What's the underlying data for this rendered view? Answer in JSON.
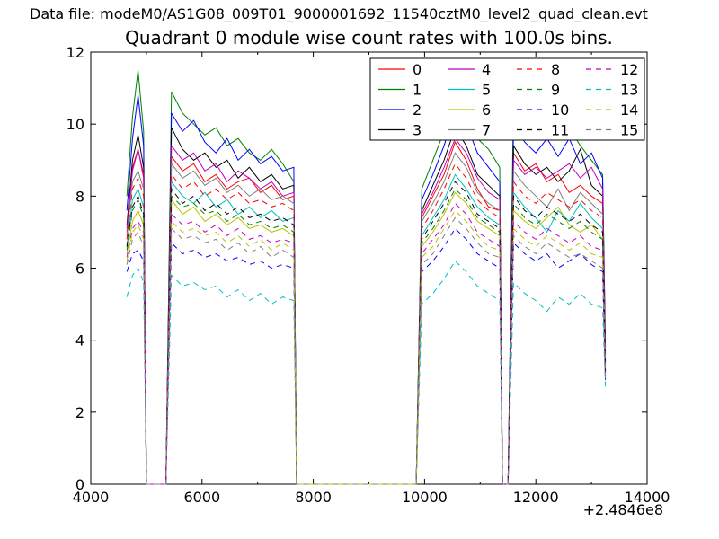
{
  "header_text": "Data file: modeM0/AS1G08_009T01_9000001692_11540cztM0_level2_quad_clean.evt",
  "chart_data": {
    "type": "line",
    "title": "Quadrant 0 module wise count rates with 100.0s bins.",
    "xlabel": "",
    "ylabel": "",
    "x_offset_label": "+2.4846e8",
    "xlim": [
      4000,
      14000
    ],
    "ylim": [
      0,
      12
    ],
    "xticks": [
      4000,
      6000,
      8000,
      10000,
      12000,
      14000
    ],
    "xminorticks": [
      5000,
      7000,
      9000,
      11000,
      13000
    ],
    "yticks": [
      0,
      2,
      4,
      6,
      8,
      10,
      12
    ],
    "grid": false,
    "legend_position": "upper center, 4 columns",
    "x": [
      4650,
      4750,
      4850,
      4950,
      5000,
      5350,
      5450,
      5650,
      5850,
      6050,
      6250,
      6450,
      6650,
      6850,
      7050,
      7250,
      7450,
      7650,
      7700,
      9850,
      9950,
      10150,
      10350,
      10550,
      10750,
      10950,
      11150,
      11350,
      11400,
      11500,
      11600,
      11800,
      12000,
      12200,
      12400,
      12600,
      12800,
      13000,
      13200,
      13250
    ],
    "series": [
      {
        "name": "0",
        "color": "#ff0000",
        "dash": false,
        "values": [
          7.0,
          8.8,
          9.3,
          8.5,
          0,
          0,
          9.1,
          8.7,
          8.9,
          8.4,
          8.6,
          8.2,
          8.4,
          8.5,
          8.1,
          8.3,
          7.9,
          8.0,
          0,
          0,
          7.4,
          8.0,
          8.6,
          9.5,
          9.0,
          8.2,
          7.7,
          7.6,
          0,
          0,
          9.2,
          8.7,
          8.9,
          8.4,
          8.6,
          8.1,
          8.3,
          8.0,
          7.8,
          3.4
        ]
      },
      {
        "name": "1",
        "color": "#008000",
        "dash": false,
        "values": [
          8.0,
          10.2,
          11.5,
          9.8,
          0,
          0,
          10.9,
          10.3,
          10.0,
          9.7,
          9.9,
          9.4,
          9.6,
          9.2,
          9.0,
          9.3,
          8.9,
          8.4,
          0,
          0,
          8.2,
          9.0,
          9.8,
          10.9,
          10.4,
          9.6,
          9.3,
          8.8,
          0,
          0,
          10.8,
          10.2,
          9.9,
          10.1,
          9.6,
          9.9,
          9.4,
          9.0,
          8.6,
          4.0
        ]
      },
      {
        "name": "2",
        "color": "#0000ff",
        "dash": false,
        "values": [
          7.6,
          9.6,
          10.8,
          9.4,
          0,
          0,
          10.3,
          9.8,
          10.1,
          9.5,
          9.2,
          9.6,
          9.0,
          9.3,
          8.9,
          9.1,
          8.7,
          8.8,
          0,
          0,
          7.9,
          8.6,
          9.4,
          10.4,
          10.0,
          9.2,
          8.8,
          8.4,
          0,
          0,
          10.0,
          9.5,
          9.2,
          9.6,
          9.1,
          9.6,
          8.9,
          9.2,
          8.5,
          3.8
        ]
      },
      {
        "name": "3",
        "color": "#000000",
        "dash": false,
        "values": [
          7.2,
          9.0,
          9.7,
          8.8,
          0,
          0,
          9.9,
          9.3,
          9.0,
          9.2,
          8.8,
          9.0,
          8.5,
          8.8,
          8.4,
          8.6,
          8.2,
          8.3,
          0,
          0,
          7.6,
          8.3,
          9.0,
          9.9,
          9.4,
          8.6,
          8.3,
          8.0,
          0,
          0,
          9.4,
          8.9,
          8.6,
          8.8,
          8.4,
          8.7,
          9.3,
          8.3,
          8.0,
          3.6
        ]
      },
      {
        "name": "4",
        "color": "#bf00bf",
        "dash": false,
        "values": [
          7.1,
          8.7,
          9.3,
          8.6,
          0,
          0,
          9.4,
          9.0,
          9.2,
          8.7,
          8.9,
          8.4,
          8.7,
          8.5,
          8.2,
          8.4,
          8.0,
          8.1,
          0,
          0,
          7.5,
          8.1,
          8.8,
          9.6,
          9.2,
          8.5,
          8.1,
          7.9,
          0,
          0,
          9.0,
          8.6,
          8.8,
          8.5,
          8.7,
          8.9,
          8.5,
          8.8,
          8.2,
          3.5
        ]
      },
      {
        "name": "5",
        "color": "#00bfbf",
        "dash": false,
        "values": [
          6.6,
          7.9,
          8.2,
          7.7,
          0,
          0,
          8.4,
          8.0,
          7.8,
          8.1,
          7.7,
          7.9,
          7.5,
          7.7,
          7.4,
          7.6,
          7.3,
          7.4,
          0,
          0,
          6.9,
          7.4,
          7.9,
          8.6,
          8.2,
          7.7,
          7.4,
          7.2,
          0,
          0,
          8.1,
          7.7,
          7.4,
          7.0,
          7.6,
          7.3,
          7.8,
          7.4,
          7.1,
          3.2
        ]
      },
      {
        "name": "6",
        "color": "#bfbf00",
        "dash": false,
        "values": [
          6.4,
          7.3,
          7.6,
          7.2,
          0,
          0,
          7.9,
          7.5,
          7.7,
          7.3,
          7.5,
          7.2,
          7.4,
          7.1,
          7.2,
          7.0,
          7.1,
          6.9,
          0,
          0,
          6.6,
          7.0,
          7.5,
          8.1,
          7.8,
          7.3,
          7.1,
          6.9,
          0,
          0,
          7.6,
          7.3,
          7.1,
          7.4,
          7.7,
          7.2,
          7.0,
          7.2,
          6.8,
          3.1
        ]
      },
      {
        "name": "7",
        "color": "#7f7f7f",
        "dash": false,
        "values": [
          6.9,
          8.4,
          8.7,
          8.2,
          0,
          0,
          8.9,
          8.5,
          8.7,
          8.3,
          8.5,
          8.1,
          8.3,
          8.0,
          8.2,
          7.9,
          8.0,
          7.8,
          0,
          0,
          7.3,
          7.8,
          8.4,
          9.2,
          8.8,
          8.1,
          7.8,
          7.6,
          0,
          0,
          8.7,
          8.3,
          8.0,
          7.7,
          8.2,
          7.6,
          8.1,
          7.8,
          7.5,
          3.3
        ]
      },
      {
        "name": "8",
        "color": "#ff0000",
        "dash": true,
        "values": [
          6.8,
          8.2,
          8.5,
          8.0,
          0,
          0,
          8.6,
          8.2,
          8.4,
          8.0,
          8.2,
          7.9,
          8.1,
          7.8,
          7.9,
          7.7,
          7.8,
          7.6,
          0,
          0,
          7.1,
          7.6,
          8.2,
          8.9,
          8.5,
          7.9,
          7.6,
          7.4,
          0,
          0,
          8.4,
          8.0,
          7.8,
          8.1,
          7.9,
          7.7,
          7.9,
          7.6,
          7.4,
          3.3
        ]
      },
      {
        "name": "9",
        "color": "#008000",
        "dash": true,
        "values": [
          6.5,
          7.6,
          7.9,
          7.4,
          0,
          0,
          8.0,
          7.7,
          7.8,
          7.5,
          7.6,
          7.3,
          7.5,
          7.2,
          7.3,
          7.1,
          7.2,
          7.0,
          0,
          0,
          6.7,
          7.1,
          7.6,
          8.2,
          7.9,
          7.4,
          7.2,
          7.0,
          0,
          0,
          7.8,
          7.4,
          7.2,
          7.5,
          7.3,
          7.1,
          7.3,
          7.0,
          6.8,
          3.0
        ]
      },
      {
        "name": "10",
        "color": "#0000ff",
        "dash": true,
        "values": [
          5.9,
          6.4,
          6.5,
          6.2,
          0,
          0,
          6.7,
          6.4,
          6.5,
          6.3,
          6.4,
          6.2,
          6.3,
          6.1,
          6.2,
          6.0,
          6.1,
          6.0,
          0,
          0,
          5.9,
          6.2,
          6.6,
          7.1,
          6.8,
          6.4,
          6.2,
          6.0,
          0,
          0,
          6.7,
          6.4,
          6.2,
          6.4,
          6.0,
          6.2,
          6.4,
          6.1,
          5.9,
          2.9
        ]
      },
      {
        "name": "11",
        "color": "#000000",
        "dash": true,
        "values": [
          6.6,
          7.7,
          8.0,
          7.5,
          0,
          0,
          8.2,
          7.8,
          8.0,
          7.6,
          7.8,
          7.5,
          7.7,
          7.4,
          7.5,
          7.3,
          7.4,
          7.2,
          0,
          0,
          6.8,
          7.3,
          7.8,
          8.4,
          8.1,
          7.5,
          7.3,
          7.1,
          0,
          0,
          8.0,
          7.6,
          7.4,
          7.7,
          7.5,
          7.3,
          7.5,
          7.2,
          7.0,
          3.1
        ]
      },
      {
        "name": "12",
        "color": "#bf00bf",
        "dash": true,
        "values": [
          6.3,
          7.1,
          7.3,
          7.0,
          0,
          0,
          7.5,
          7.2,
          7.3,
          7.0,
          7.2,
          6.9,
          7.1,
          6.8,
          6.9,
          6.7,
          6.8,
          6.7,
          0,
          0,
          6.4,
          6.8,
          7.2,
          7.8,
          7.5,
          7.0,
          6.8,
          6.6,
          0,
          0,
          7.3,
          7.0,
          6.8,
          7.1,
          6.9,
          6.7,
          6.9,
          6.6,
          6.5,
          3.0
        ]
      },
      {
        "name": "13",
        "color": "#00bfbf",
        "dash": true,
        "values": [
          5.2,
          5.8,
          6.0,
          5.6,
          0,
          0,
          5.8,
          5.5,
          5.6,
          5.4,
          5.5,
          5.2,
          5.4,
          5.1,
          5.3,
          5.0,
          5.2,
          5.1,
          0,
          0,
          5.0,
          5.3,
          5.7,
          6.2,
          5.9,
          5.5,
          5.3,
          5.1,
          0,
          0,
          5.6,
          5.3,
          5.1,
          4.8,
          5.2,
          5.0,
          5.3,
          5.0,
          4.9,
          2.7
        ]
      },
      {
        "name": "14",
        "color": "#bfbf00",
        "dash": true,
        "values": [
          6.2,
          7.0,
          7.2,
          6.8,
          0,
          0,
          7.3,
          7.0,
          7.1,
          6.9,
          7.0,
          6.7,
          6.9,
          6.6,
          6.8,
          6.5,
          6.7,
          6.5,
          0,
          0,
          6.3,
          6.6,
          7.1,
          7.6,
          7.3,
          6.9,
          6.6,
          6.5,
          0,
          0,
          7.1,
          6.8,
          6.6,
          6.9,
          6.7,
          6.5,
          6.7,
          6.4,
          6.3,
          2.9
        ]
      },
      {
        "name": "15",
        "color": "#7f7f7f",
        "dash": true,
        "values": [
          6.1,
          6.8,
          7.0,
          6.6,
          0,
          0,
          7.1,
          6.8,
          6.9,
          6.7,
          6.8,
          6.5,
          6.7,
          6.4,
          6.6,
          6.3,
          6.5,
          6.3,
          0,
          0,
          6.1,
          6.4,
          6.9,
          7.4,
          7.1,
          6.7,
          6.4,
          6.3,
          0,
          0,
          6.9,
          6.6,
          6.4,
          6.7,
          6.5,
          6.3,
          6.4,
          6.2,
          6.0,
          2.8
        ]
      }
    ]
  },
  "colors": {
    "background": "#ffffff",
    "spine": "#000000",
    "legend_border": "#000000"
  }
}
